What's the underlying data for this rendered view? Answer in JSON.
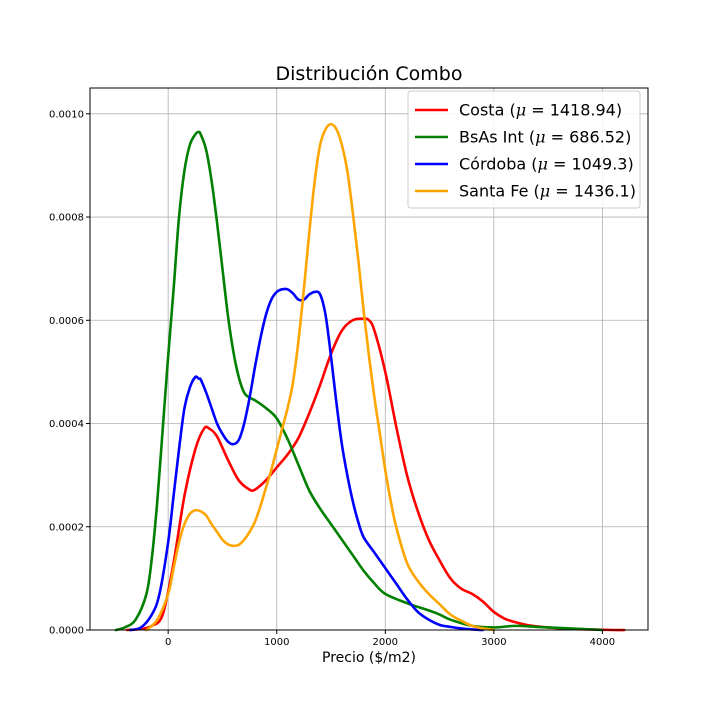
{
  "chart_data": {
    "type": "line",
    "title": "Distribución Combo",
    "xlabel": "Precio ($/m2)",
    "ylabel": "",
    "xlim": [
      -720,
      4420
    ],
    "ylim": [
      0,
      0.00105
    ],
    "xticks": [
      0,
      1000,
      2000,
      3000,
      4000
    ],
    "yticks": [
      0.0,
      0.0002,
      0.0004,
      0.0006,
      0.0008,
      0.001
    ],
    "ytick_labels": [
      "0.0000",
      "0.0002",
      "0.0004",
      "0.0006",
      "0.0008",
      "0.0010"
    ],
    "grid": true,
    "legend_position": "top-right",
    "series": [
      {
        "name": "Costa (μ = 1418.94)",
        "name_prefix": "Costa (",
        "name_mu": "μ",
        "name_suffix": " = 1418.94)",
        "color": "#ff0000",
        "x": [
          -380,
          -250,
          -150,
          -50,
          50,
          150,
          250,
          330,
          380,
          450,
          550,
          650,
          750,
          800,
          900,
          1000,
          1100,
          1200,
          1300,
          1400,
          1500,
          1600,
          1700,
          1800,
          1850,
          1900,
          2000,
          2100,
          2200,
          2300,
          2400,
          2500,
          2600,
          2700,
          2800,
          2900,
          3000,
          3100,
          3200,
          3300,
          3400,
          3500,
          3700,
          3900,
          4100,
          4200
        ],
        "y": [
          0.0,
          2e-06,
          8e-06,
          3e-05,
          0.00013,
          0.00026,
          0.00035,
          0.00039,
          0.00039,
          0.000375,
          0.00033,
          0.00029,
          0.000272,
          0.000272,
          0.00029,
          0.000315,
          0.00034,
          0.000372,
          0.00042,
          0.000475,
          0.000535,
          0.00058,
          0.0006,
          0.000603,
          0.0006,
          0.00058,
          0.0005,
          0.000395,
          0.0003,
          0.00023,
          0.000175,
          0.000135,
          0.0001,
          8e-05,
          7e-05,
          5.5e-05,
          3.5e-05,
          2.2e-05,
          1.5e-05,
          1e-05,
          7e-06,
          5e-06,
          2e-06,
          1e-06,
          0.0,
          0.0
        ]
      },
      {
        "name": "BsAs Int (μ = 686.52)",
        "name_prefix": "BsAs Int (",
        "name_mu": "μ",
        "name_suffix": " = 686.52)",
        "color": "#008000",
        "x": [
          -480,
          -400,
          -300,
          -200,
          -150,
          -100,
          -50,
          0,
          50,
          100,
          150,
          200,
          250,
          280,
          300,
          350,
          400,
          450,
          500,
          550,
          600,
          650,
          700,
          750,
          800,
          900,
          1000,
          1100,
          1200,
          1300,
          1400,
          1500,
          1600,
          1700,
          1800,
          1900,
          2000,
          2200,
          2400,
          2500,
          2600,
          2800,
          3000,
          3200,
          3400,
          3600,
          3800,
          4000
        ],
        "y": [
          0.0,
          5e-06,
          2e-05,
          7e-05,
          0.00014,
          0.00025,
          0.00039,
          0.00053,
          0.00066,
          0.0008,
          0.00089,
          0.00094,
          0.00096,
          0.000965,
          0.00096,
          0.00093,
          0.00087,
          0.00079,
          0.0007,
          0.00061,
          0.00054,
          0.00049,
          0.00046,
          0.00045,
          0.000445,
          0.00043,
          0.00041,
          0.00037,
          0.00032,
          0.00027,
          0.000235,
          0.000205,
          0.000175,
          0.000145,
          0.000115,
          9e-05,
          7e-05,
          5.2e-05,
          3.8e-05,
          3e-05,
          2e-05,
          8e-06,
          5e-06,
          8e-06,
          6e-06,
          4e-06,
          2e-06,
          0.0
        ]
      },
      {
        "name": "Córdoba (μ = 1049.3)",
        "name_prefix": "Córdoba (",
        "name_mu": "μ",
        "name_suffix": " = 1049.3)",
        "color": "#0000ff",
        "x": [
          -350,
          -250,
          -150,
          -80,
          0,
          50,
          100,
          150,
          200,
          250,
          280,
          300,
          350,
          400,
          450,
          500,
          550,
          600,
          650,
          700,
          750,
          800,
          850,
          900,
          950,
          1000,
          1050,
          1100,
          1150,
          1200,
          1250,
          1300,
          1350,
          1400,
          1450,
          1500,
          1550,
          1600,
          1650,
          1700,
          1750,
          1800,
          1900,
          2000,
          2100,
          2200,
          2300,
          2400,
          2500,
          2600,
          2700,
          2800,
          2900
        ],
        "y": [
          0.0,
          5e-06,
          3e-05,
          7e-05,
          0.00017,
          0.00026,
          0.00035,
          0.00043,
          0.00047,
          0.00049,
          0.000487,
          0.000485,
          0.00046,
          0.00043,
          0.0004,
          0.00038,
          0.000365,
          0.00036,
          0.000368,
          0.0004,
          0.00045,
          0.00051,
          0.000565,
          0.00061,
          0.00064,
          0.000655,
          0.00066,
          0.00066,
          0.000652,
          0.00064,
          0.00064,
          0.00065,
          0.000655,
          0.00065,
          0.00061,
          0.00053,
          0.00044,
          0.00036,
          0.0003,
          0.00025,
          0.00021,
          0.00018,
          0.00015,
          0.00012,
          9e-05,
          6e-05,
          3.5e-05,
          2e-05,
          1e-05,
          6e-06,
          3e-06,
          1e-06,
          0.0
        ]
      },
      {
        "name": "Santa Fe (μ = 1436.1)",
        "name_prefix": "Santa Fe (",
        "name_mu": "μ",
        "name_suffix": " = 1436.1)",
        "color": "#ffa500",
        "x": [
          -200,
          -100,
          0,
          50,
          100,
          150,
          200,
          250,
          300,
          350,
          400,
          450,
          500,
          550,
          600,
          650,
          700,
          750,
          800,
          850,
          900,
          950,
          1000,
          1050,
          1100,
          1150,
          1200,
          1250,
          1300,
          1350,
          1400,
          1450,
          1500,
          1550,
          1600,
          1650,
          1700,
          1750,
          1800,
          1850,
          1900,
          1950,
          2000,
          2050,
          2100,
          2200,
          2300,
          2400,
          2500,
          2600,
          2700,
          2800,
          2900,
          3000
        ],
        "y": [
          0.0,
          2e-05,
          7e-05,
          0.00012,
          0.00017,
          0.000205,
          0.000225,
          0.000232,
          0.00023,
          0.000222,
          0.000205,
          0.00019,
          0.000175,
          0.000166,
          0.000163,
          0.000165,
          0.000175,
          0.00019,
          0.00021,
          0.00024,
          0.000275,
          0.00031,
          0.00035,
          0.00039,
          0.00043,
          0.00048,
          0.00056,
          0.00066,
          0.00077,
          0.00087,
          0.00094,
          0.00097,
          0.00098,
          0.00097,
          0.00094,
          0.00089,
          0.00081,
          0.00072,
          0.00062,
          0.00053,
          0.00045,
          0.00038,
          0.00031,
          0.00025,
          0.0002,
          0.00013,
          9.5e-05,
          7e-05,
          5e-05,
          3e-05,
          1.8e-05,
          8e-06,
          3e-06,
          0.0
        ]
      }
    ]
  }
}
